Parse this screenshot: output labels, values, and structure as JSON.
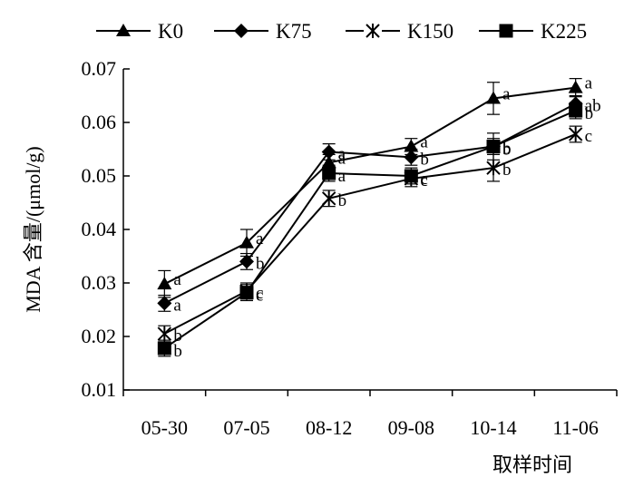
{
  "chart_data": {
    "type": "line",
    "title": "",
    "xlabel": "取样时间",
    "ylabel": "MDA 含量/(μmol/g)",
    "categories": [
      "05-30",
      "07-05",
      "08-12",
      "09-08",
      "10-14",
      "11-06"
    ],
    "ylim": [
      0.01,
      0.07
    ],
    "yticks": [
      "0.01",
      "0.02",
      "0.03",
      "0.04",
      "0.05",
      "0.06",
      "0.07"
    ],
    "grid": false,
    "legend_position": "top",
    "series": [
      {
        "name": "K0",
        "marker": "triangle",
        "values": [
          0.0298,
          0.0375,
          0.0525,
          0.0555,
          0.0645,
          0.0665
        ],
        "errors": [
          0.0025,
          0.0025,
          0.0015,
          0.0015,
          0.003,
          0.0017
        ],
        "labels": [
          "a",
          "a",
          "a",
          "a",
          "a",
          "a"
        ]
      },
      {
        "name": "K75",
        "marker": "diamond",
        "values": [
          0.0262,
          0.034,
          0.0545,
          0.0535,
          0.0555,
          0.0635
        ],
        "errors": [
          0.0015,
          0.0015,
          0.0015,
          0.0015,
          0.0015,
          0.0015
        ],
        "labels": [
          "a",
          "b",
          "a",
          "b",
          "b",
          "ab"
        ]
      },
      {
        "name": "K150",
        "marker": "star",
        "values": [
          0.0205,
          0.0285,
          0.0458,
          0.0495,
          0.0515,
          0.0578
        ],
        "errors": [
          0.0015,
          0.0015,
          0.0015,
          0.0015,
          0.0025,
          0.0015
        ],
        "labels": [
          "b",
          "c",
          "b",
          "c",
          "b",
          "c"
        ]
      },
      {
        "name": "K225",
        "marker": "square",
        "values": [
          0.0178,
          0.0282,
          0.0505,
          0.05,
          0.0555,
          0.0622
        ],
        "errors": [
          0.0015,
          0.0015,
          0.0015,
          0.0015,
          0.0025,
          0.0015
        ],
        "labels": [
          "b",
          "c",
          "a",
          "c",
          "b",
          "b"
        ]
      }
    ]
  }
}
